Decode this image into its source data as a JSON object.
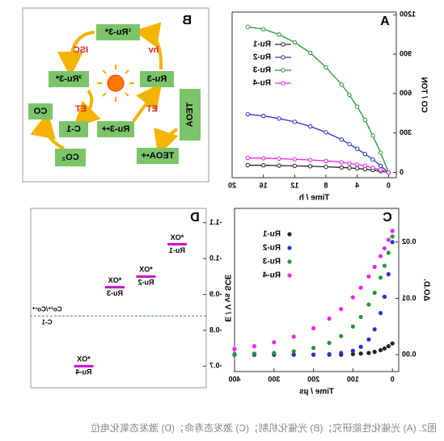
{
  "caption": "图2. (A) 光催化性能研究；(B) 光催化机制；(C) 激发态寿命；(D) 激发态氧化电位",
  "diagram": {
    "label": "B",
    "nodes": [
      "¹Ru-3*",
      "Ru-3",
      "³Ru-3*",
      "CO",
      "C-1",
      "Ru-3•+",
      "TEOA",
      "TEOA•+",
      "CO₂"
    ],
    "edge_labels": [
      "hv",
      "ISC",
      "ET",
      "ET"
    ]
  },
  "chart_data": [
    {
      "type": "line",
      "label": "A",
      "xlabel": "Time / h",
      "ylabel": "CO / TON",
      "x": [
        0,
        1,
        2,
        3,
        4,
        5,
        6,
        8,
        10,
        12,
        14,
        16,
        18
      ],
      "xlim": [
        -1,
        20
      ],
      "xticks": [
        0,
        4,
        8,
        12,
        16,
        20
      ],
      "ylim": [
        -40,
        1220
      ],
      "yticks": [
        0,
        300,
        600,
        900,
        1200
      ],
      "legend": "upper right",
      "series": [
        {
          "name": "Ru-1",
          "color": "#222222",
          "values": [
            0,
            10,
            18,
            25,
            30,
            35,
            38,
            43,
            47,
            50,
            52,
            54,
            55
          ]
        },
        {
          "name": "Ru-2",
          "color": "#2233cc",
          "values": [
            0,
            50,
            100,
            140,
            180,
            215,
            250,
            305,
            350,
            385,
            410,
            430,
            443
          ]
        },
        {
          "name": "Ru-3",
          "color": "#22992e",
          "values": [
            0,
            150,
            280,
            400,
            500,
            590,
            670,
            800,
            910,
            990,
            1050,
            1090,
            1108
          ]
        },
        {
          "name": "Ru-4",
          "color": "#ee22ee",
          "values": [
            0,
            20,
            35,
            50,
            60,
            70,
            78,
            88,
            95,
            100,
            105,
            108,
            111
          ]
        }
      ]
    },
    {
      "type": "scatter",
      "label": "C",
      "xlabel": "Time / µs",
      "ylabel": "ΔO.D.",
      "x": [
        0,
        10,
        20,
        30,
        45,
        60,
        80,
        100,
        130,
        160,
        200,
        250,
        300,
        350,
        400
      ],
      "xlim": [
        -16,
        400
      ],
      "xticks": [
        0,
        100,
        200,
        300,
        400
      ],
      "ylim": [
        -0.003,
        0.026
      ],
      "yticks": [
        {
          "value": 0,
          "label": "0.00"
        },
        {
          "value": 0.01,
          "label": "0.01"
        },
        {
          "value": 0.02,
          "label": "0.02"
        }
      ],
      "legend": "upper right",
      "series": [
        {
          "name": "Ru-1",
          "color": "#222222",
          "values": [
            0.002,
            0.0015,
            0.0011,
            0.0008,
            0.0005,
            0.0003,
            0.0002,
            0.0001,
            0,
            0,
            0,
            0,
            0,
            0,
            0
          ]
        },
        {
          "name": "Ru-2",
          "color": "#2233cc",
          "values": [
            0.02,
            0.0143,
            0.0103,
            0.0074,
            0.0045,
            0.0027,
            0.0014,
            0.0007,
            0.0003,
            0.0001,
            0,
            0,
            0,
            0,
            0
          ]
        },
        {
          "name": "Ru-3",
          "color": "#22992e",
          "values": [
            0.021,
            0.0181,
            0.0158,
            0.0137,
            0.011,
            0.0089,
            0.0067,
            0.005,
            0.0033,
            0.0021,
            0.0012,
            0.0006,
            0.0003,
            0.0002,
            0.0001
          ]
        },
        {
          "name": "Ru-4",
          "color": "#ee22ee",
          "values": [
            0.022,
            0.0204,
            0.0189,
            0.0175,
            0.0156,
            0.0139,
            0.0119,
            0.0102,
            0.0081,
            0.0064,
            0.0047,
            0.0032,
            0.0022,
            0.0015,
            0.001
          ]
        }
      ]
    },
    {
      "type": "level",
      "label": "D",
      "ylabel": "E / V vs SCE",
      "level_label": "*OX",
      "categories": [
        "Ru-1",
        "Ru-2",
        "Ru-3",
        "Ru-4"
      ],
      "values": [
        -1.04,
        -0.95,
        -0.92,
        -0.7
      ],
      "color": "#cc11cc",
      "reference": {
        "name": "C-1",
        "label": "Co²⁺/Co¹⁺",
        "value": -0.84,
        "color": "#5577aa"
      },
      "ylim": [
        -1.14,
        -0.64
      ],
      "inverted": true,
      "yticks": [
        -1.1,
        {
          "value": -1,
          "label": "-1.0"
        },
        -0.9,
        -0.8,
        -0.7
      ]
    }
  ]
}
